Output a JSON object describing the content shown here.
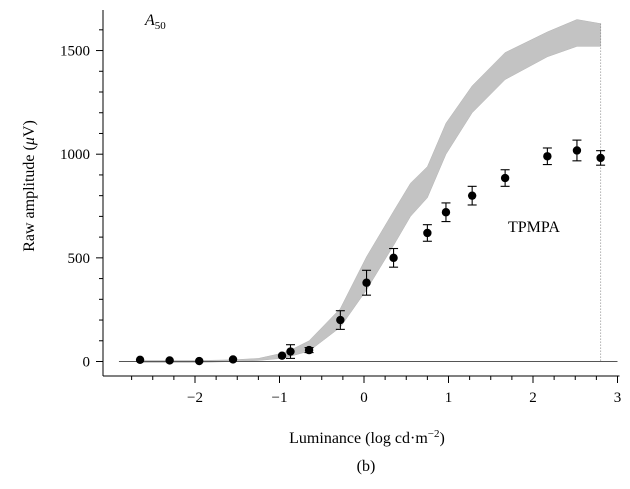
{
  "chart_data": {
    "type": "scatter",
    "title": "",
    "panel_label": "(b)",
    "corner_label": {
      "main": "A",
      "sub": "50"
    },
    "xlabel_parts": {
      "main": "Luminance (log cd·m",
      "sup": "−2",
      "end": ")"
    },
    "ylabel_parts": {
      "main": "Raw amplitude (",
      "italic": "μ",
      "end": "V)"
    },
    "xlim": [
      -3,
      3
    ],
    "ylim": [
      -60,
      1700
    ],
    "x_ticks": [
      -2,
      -1,
      0,
      1,
      2,
      3
    ],
    "x_tick_labels": [
      "−2",
      "−1",
      "0",
      "1",
      "2",
      "3"
    ],
    "x_minor_ticks": [
      -2.75,
      -2.5,
      -2.25,
      -1.75,
      -1.5,
      -1.25,
      -0.75,
      -0.5,
      -0.25,
      0.25,
      0.5,
      0.75,
      1.25,
      1.5,
      1.75,
      2.25,
      2.5,
      2.75
    ],
    "y_ticks": [
      0,
      500,
      1000,
      1500
    ],
    "y_tick_labels": [
      "0",
      "500",
      "1000",
      "1500"
    ],
    "y_minor_ticks": [
      100,
      200,
      300,
      400,
      600,
      700,
      800,
      900,
      1100,
      1200,
      1300,
      1400,
      1600
    ],
    "annotation": "TPMPA",
    "grid": false,
    "series": [
      {
        "name": "TPMPA",
        "points": [
          {
            "x": -2.65,
            "y": 8,
            "err": 0
          },
          {
            "x": -2.3,
            "y": 5,
            "err": 0
          },
          {
            "x": -1.95,
            "y": 2,
            "err": 0
          },
          {
            "x": -1.55,
            "y": 10,
            "err": 0
          },
          {
            "x": -0.97,
            "y": 28,
            "err": 0
          },
          {
            "x": -0.87,
            "y": 48,
            "err": 33
          },
          {
            "x": -0.65,
            "y": 55,
            "err": 12
          },
          {
            "x": -0.28,
            "y": 200,
            "err": 45
          },
          {
            "x": 0.03,
            "y": 380,
            "err": 60
          },
          {
            "x": 0.35,
            "y": 500,
            "err": 45
          },
          {
            "x": 0.75,
            "y": 620,
            "err": 40
          },
          {
            "x": 0.97,
            "y": 720,
            "err": 45
          },
          {
            "x": 1.28,
            "y": 800,
            "err": 45
          },
          {
            "x": 1.67,
            "y": 885,
            "err": 40
          },
          {
            "x": 2.17,
            "y": 990,
            "err": 40
          },
          {
            "x": 2.52,
            "y": 1018,
            "err": 50
          },
          {
            "x": 2.8,
            "y": 982,
            "err": 35
          }
        ]
      }
    ],
    "control_band": {
      "x": [
        -2.65,
        -2.3,
        -1.95,
        -1.55,
        -1.25,
        -0.97,
        -0.87,
        -0.65,
        -0.28,
        0.03,
        0.35,
        0.55,
        0.75,
        0.97,
        1.28,
        1.67,
        2.17,
        2.52,
        2.8
      ],
      "lower": [
        -5,
        -5,
        -5,
        0,
        5,
        15,
        25,
        50,
        165,
        345,
        560,
        700,
        790,
        1000,
        1200,
        1360,
        1470,
        1520,
        1520
      ],
      "upper": [
        5,
        5,
        5,
        8,
        15,
        40,
        55,
        100,
        255,
        505,
        725,
        860,
        940,
        1150,
        1330,
        1490,
        1590,
        1650,
        1630
      ]
    }
  }
}
